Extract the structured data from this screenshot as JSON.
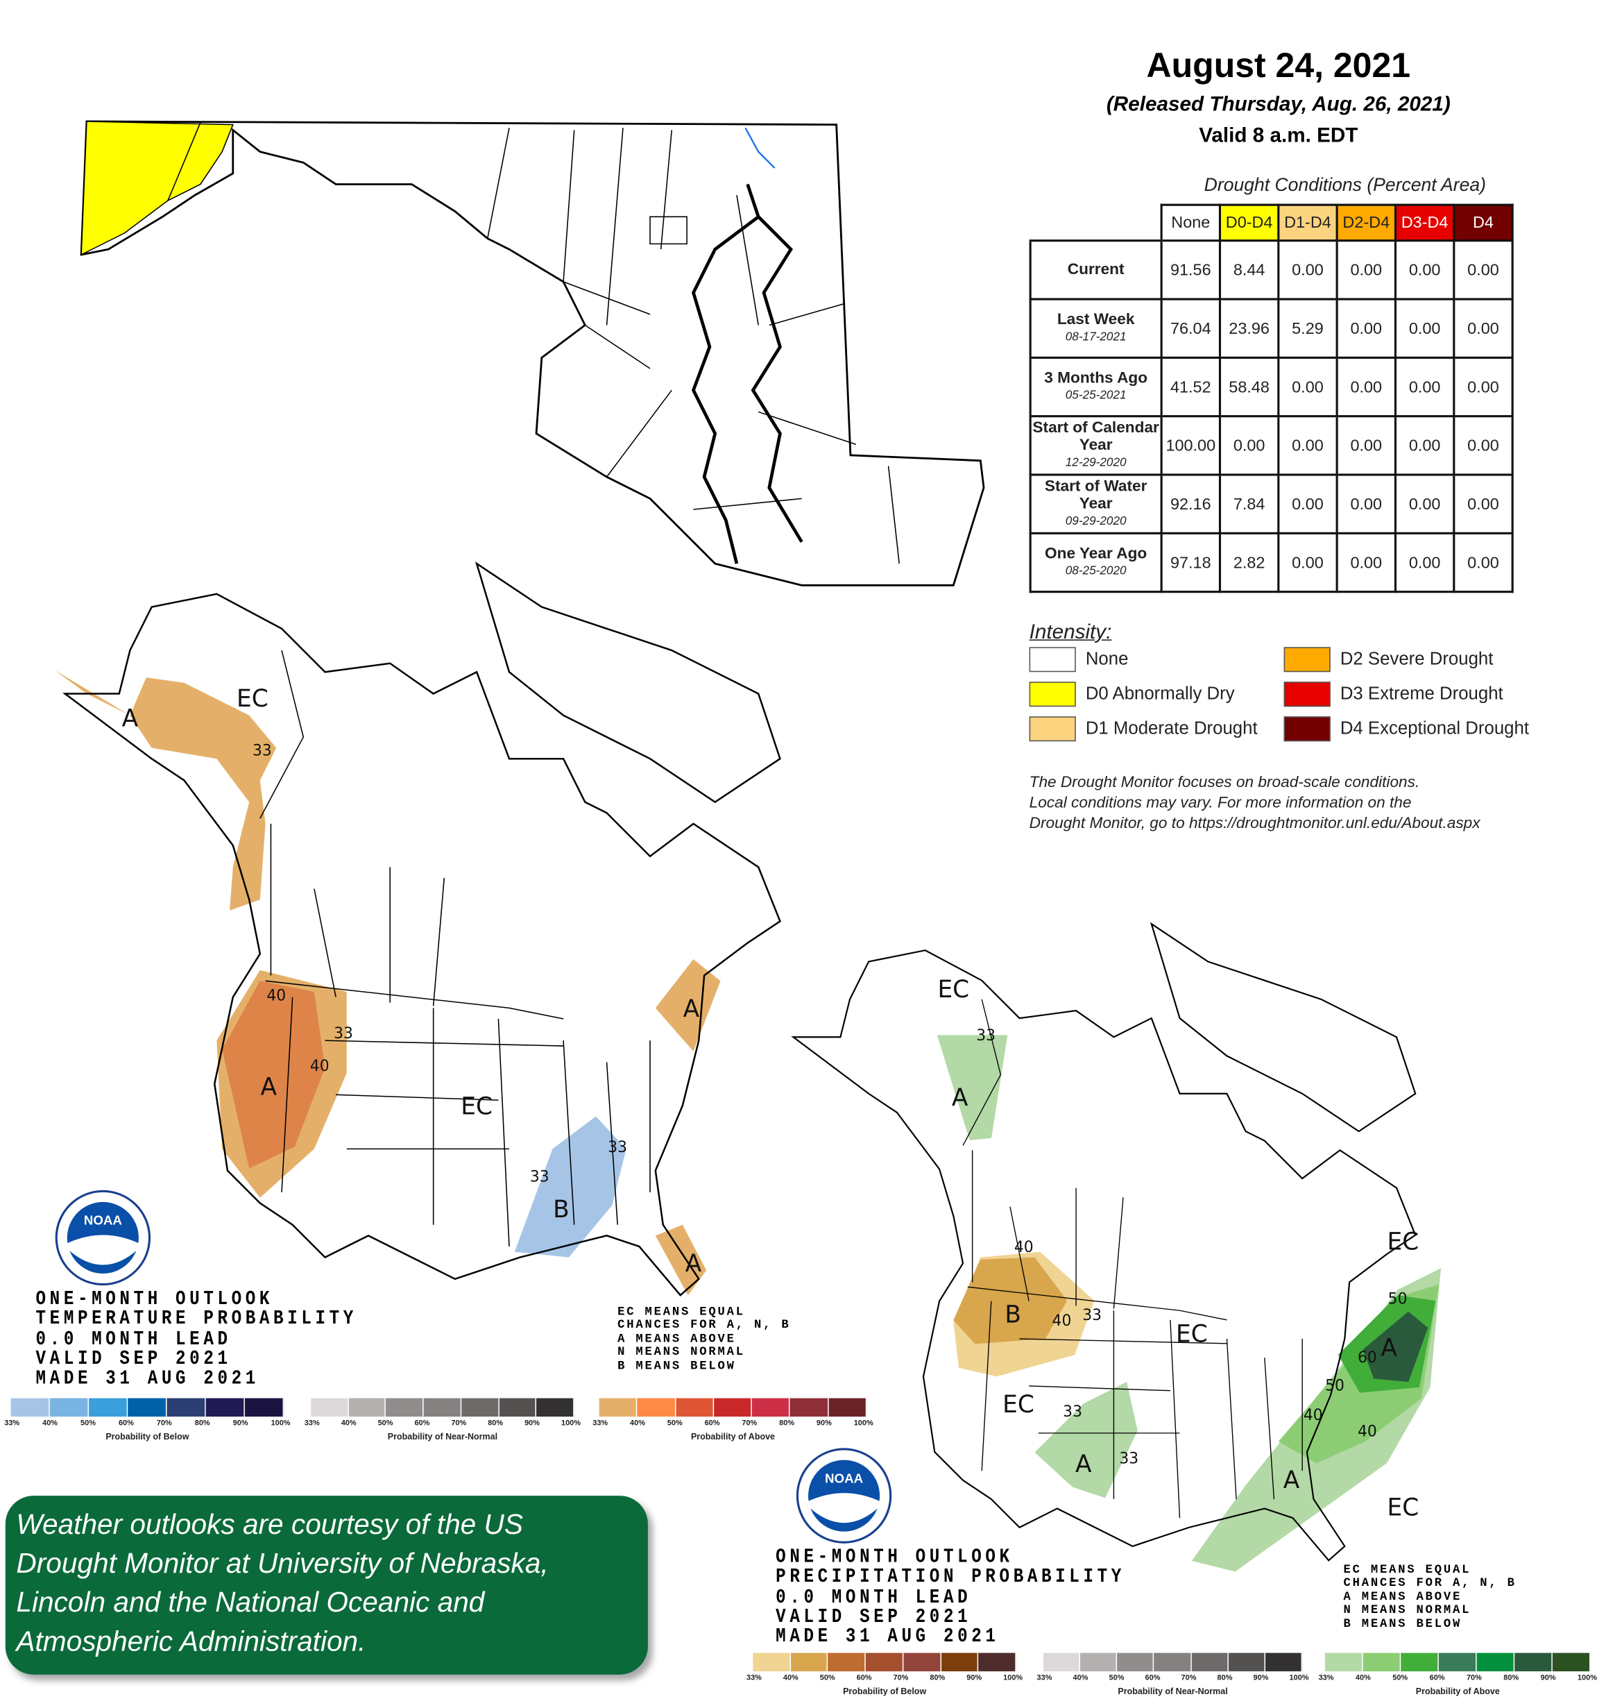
{
  "header": {
    "title": "August 24, 2021",
    "released": "(Released Thursday, Aug. 26, 2021)",
    "valid": "Valid 8 a.m. EDT"
  },
  "table": {
    "caption": "Drought Conditions (Percent Area)",
    "columns": [
      {
        "label": "None",
        "bg": "#ffffff",
        "fg": "#222222"
      },
      {
        "label": "D0-D4",
        "bg": "#ffff00",
        "fg": "#222222"
      },
      {
        "label": "D1-D4",
        "bg": "#fcd37f",
        "fg": "#222222"
      },
      {
        "label": "D2-D4",
        "bg": "#ffaa00",
        "fg": "#222222"
      },
      {
        "label": "D3-D4",
        "bg": "#e60000",
        "fg": "#ffffff"
      },
      {
        "label": "D4",
        "bg": "#730000",
        "fg": "#ffffff"
      }
    ],
    "rows": [
      {
        "label": "Current",
        "date": "",
        "values": [
          "91.56",
          "8.44",
          "0.00",
          "0.00",
          "0.00",
          "0.00"
        ]
      },
      {
        "label": "Last Week",
        "date": "08-17-2021",
        "values": [
          "76.04",
          "23.96",
          "5.29",
          "0.00",
          "0.00",
          "0.00"
        ]
      },
      {
        "label": "3 Months Ago",
        "date": "05-25-2021",
        "values": [
          "41.52",
          "58.48",
          "0.00",
          "0.00",
          "0.00",
          "0.00"
        ]
      },
      {
        "label": "Start of Calendar Year",
        "date": "12-29-2020",
        "values": [
          "100.00",
          "0.00",
          "0.00",
          "0.00",
          "0.00",
          "0.00"
        ]
      },
      {
        "label": "Start of Water Year",
        "date": "09-29-2020",
        "values": [
          "92.16",
          "7.84",
          "0.00",
          "0.00",
          "0.00",
          "0.00"
        ]
      },
      {
        "label": "One Year Ago",
        "date": "08-25-2020",
        "values": [
          "97.18",
          "2.82",
          "0.00",
          "0.00",
          "0.00",
          "0.00"
        ]
      }
    ]
  },
  "legend": {
    "title": "Intensity:",
    "items": [
      {
        "label": "None",
        "color": "#ffffff"
      },
      {
        "label": "D0 Abnormally Dry",
        "color": "#ffff00"
      },
      {
        "label": "D1 Moderate Drought",
        "color": "#fcd37f"
      },
      {
        "label": "D2 Severe Drought",
        "color": "#ffaa00"
      },
      {
        "label": "D3 Extreme Drought",
        "color": "#e60000"
      },
      {
        "label": "D4 Exceptional Drought",
        "color": "#730000"
      }
    ]
  },
  "note": [
    "The Drought Monitor focuses on broad-scale conditions.",
    "Local conditions may vary. For more information on the",
    "Drought Monitor, go to https://droughtmonitor.unl.edu/About.aspx"
  ],
  "temperature_outlook": {
    "text": [
      "ONE-MONTH OUTLOOK",
      "TEMPERATURE PROBABILITY",
      "0.0 MONTH LEAD",
      "VALID SEP 2021",
      "MADE 31 AUG 2021"
    ],
    "ec_note": [
      "EC MEANS EQUAL",
      "CHANCES FOR A, N, B",
      "A MEANS ABOVE",
      "N MEANS NORMAL",
      "B MEANS BELOW"
    ],
    "map_labels": [
      "EC",
      "A",
      "33",
      "40",
      "33",
      "40",
      "A",
      "EC",
      "33",
      "33",
      "B",
      "A",
      "A"
    ],
    "scales": [
      {
        "title": "Probability of Below",
        "colors": [
          "#a6c5e6",
          "#7ab4e2",
          "#3b9fdc",
          "#0060a8",
          "#2c3f73",
          "#211a55",
          "#1b1441"
        ]
      },
      {
        "title": "Probability of Near-Normal",
        "colors": [
          "#ddd9da",
          "#b4b0b0",
          "#918d8d",
          "#858181",
          "#6e6a6a",
          "#545151",
          "#333131"
        ]
      },
      {
        "title": "Probability of Above",
        "colors": [
          "#e4b069",
          "#fd8a46",
          "#de5636",
          "#c9282a",
          "#cc2f46",
          "#8f2f38",
          "#6b2227"
        ]
      }
    ],
    "scale_ticks": [
      "33%",
      "40%",
      "50%",
      "60%",
      "70%",
      "80%",
      "90%",
      "100%"
    ]
  },
  "precipitation_outlook": {
    "text": [
      "ONE-MONTH OUTLOOK",
      "PRECIPITATION PROBABILITY",
      "0.0 MONTH LEAD",
      "VALID SEP 2021",
      "MADE 31 AUG 2021"
    ],
    "ec_note": [
      "EC MEANS EQUAL",
      "CHANCES FOR A, N, B",
      "A MEANS ABOVE",
      "N MEANS NORMAL",
      "B MEANS BELOW"
    ],
    "map_labels": [
      "EC",
      "33",
      "A",
      "40",
      "B",
      "40",
      "33",
      "EC",
      "EC",
      "50",
      "A",
      "60",
      "50",
      "40",
      "40",
      "EC",
      "33",
      "A",
      "33",
      "A",
      "EC"
    ],
    "scales": [
      {
        "title": "Probability of Below",
        "colors": [
          "#f0d493",
          "#d8a64c",
          "#bf6c31",
          "#a4502f",
          "#93443b",
          "#7b3e0c",
          "#4e2c2c"
        ]
      },
      {
        "title": "Probability of Near-Normal",
        "colors": [
          "#ddd9da",
          "#b4b0b0",
          "#918d8d",
          "#858181",
          "#6e6a6a",
          "#545151",
          "#333131"
        ]
      },
      {
        "title": "Probability of Above",
        "colors": [
          "#b3d9a6",
          "#8ccd74",
          "#42ae3a",
          "#3a7c5a",
          "#04913e",
          "#2a5a3c",
          "#2c5222"
        ]
      }
    ],
    "scale_ticks": [
      "33%",
      "40%",
      "50%",
      "60%",
      "70%",
      "80%",
      "90%",
      "100%"
    ]
  },
  "logo": {
    "text": "NOAA"
  },
  "credit": {
    "lines": [
      "Weather outlooks are courtesy of the US",
      "Drought Monitor at University of Nebraska,",
      "Lincoln and the National Oceanic and",
      "Atmospheric Administration."
    ]
  }
}
